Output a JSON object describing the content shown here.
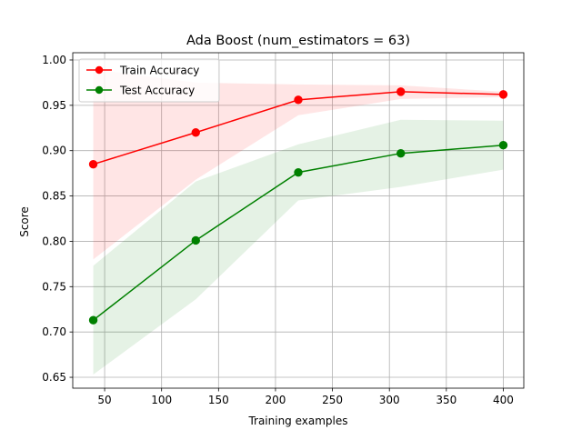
{
  "chart_data": {
    "type": "line",
    "title": "Ada Boost (num_estimators = 63)",
    "xlabel": "Training examples",
    "ylabel": "Score",
    "xlim": [
      22,
      418
    ],
    "ylim": [
      0.638,
      1.008
    ],
    "xticks": [
      50,
      100,
      150,
      200,
      250,
      300,
      350,
      400
    ],
    "yticks": [
      0.65,
      0.7,
      0.75,
      0.8,
      0.85,
      0.9,
      0.95,
      1.0
    ],
    "xtick_labels": [
      "50",
      "100",
      "150",
      "200",
      "250",
      "300",
      "350",
      "400"
    ],
    "ytick_labels": [
      "0.65",
      "0.70",
      "0.75",
      "0.80",
      "0.85",
      "0.90",
      "0.95",
      "1.00"
    ],
    "grid": true,
    "legend_position": "upper left",
    "x": [
      40,
      130,
      220,
      310,
      400
    ],
    "series": [
      {
        "name": "Train Accuracy",
        "color": "#ff0000",
        "band_color": "#ff0000",
        "values": [
          0.885,
          0.92,
          0.956,
          0.965,
          0.962
        ],
        "lower": [
          0.78,
          0.868,
          0.939,
          0.957,
          0.959
        ],
        "upper": [
          0.99,
          0.975,
          0.973,
          0.972,
          0.965
        ]
      },
      {
        "name": "Test Accuracy",
        "color": "#008000",
        "band_color": "#008000",
        "values": [
          0.713,
          0.801,
          0.876,
          0.897,
          0.906
        ],
        "lower": [
          0.653,
          0.736,
          0.845,
          0.86,
          0.879
        ],
        "upper": [
          0.773,
          0.866,
          0.907,
          0.934,
          0.933
        ]
      }
    ]
  }
}
